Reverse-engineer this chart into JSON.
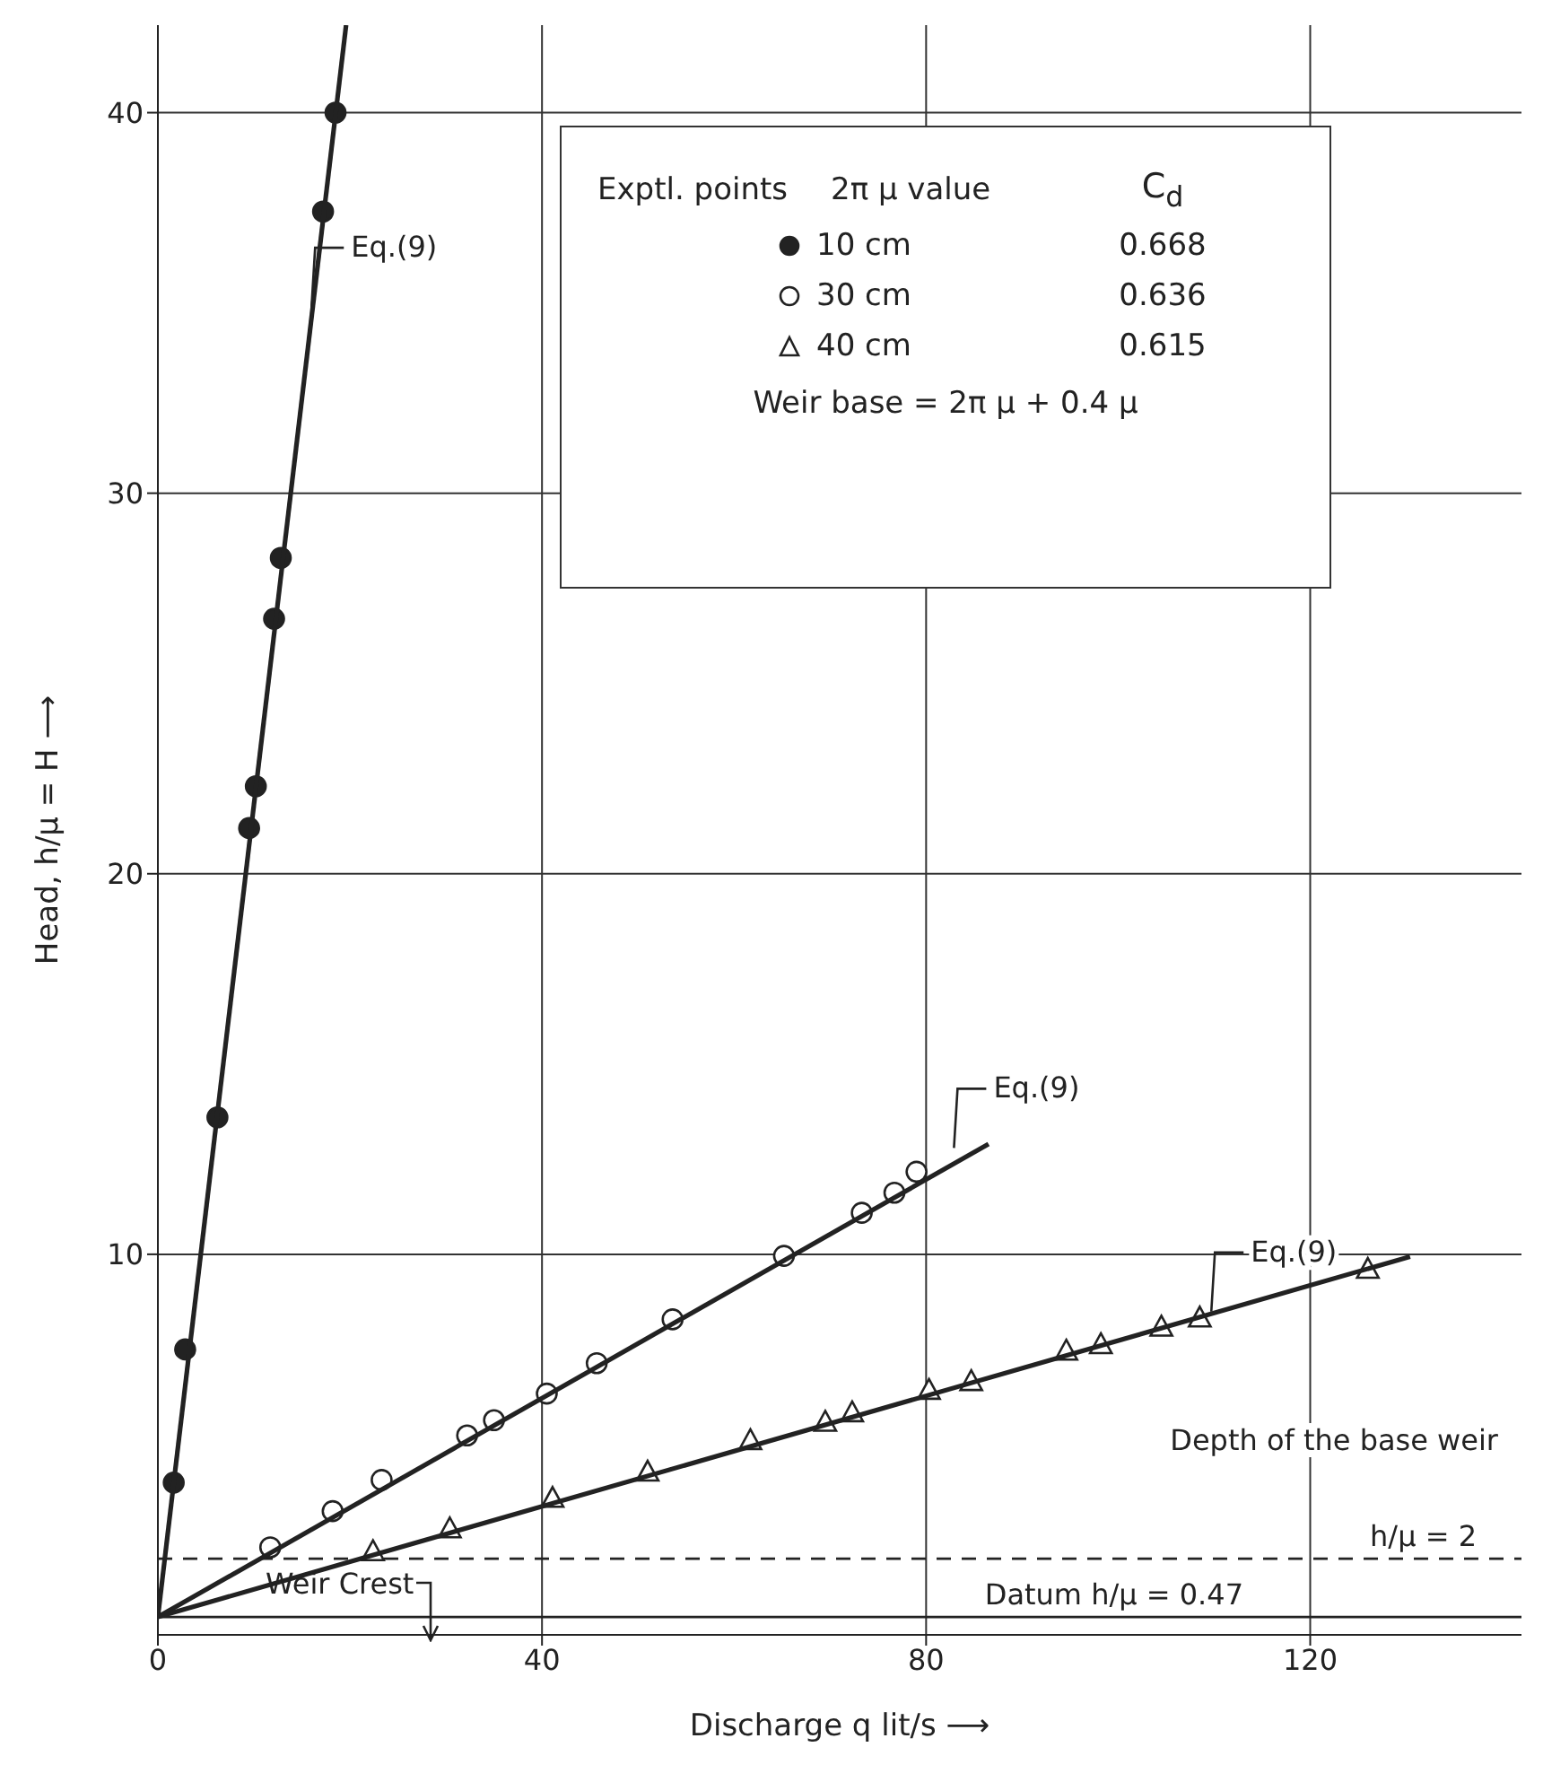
{
  "chart_data": {
    "type": "scatter",
    "xlabel": "Discharge  q  lit/s ⟶",
    "ylabel": "Head, h/μ = H ⟶",
    "xlim": [
      0,
      142
    ],
    "xticks": [
      0,
      40,
      80,
      120
    ],
    "ylim": [
      0,
      42.3
    ],
    "yticks": [
      10,
      20,
      30,
      40
    ],
    "grid": true,
    "legend": "top right",
    "series": [
      {
        "name": "10 cm",
        "marker": "circle",
        "color": "#222222",
        "x": [
          1.65,
          2.84,
          6.2,
          9.5,
          10.2,
          12.1,
          12.8,
          17.2,
          18.5
        ],
        "values": [
          4.0,
          7.5,
          13.6,
          21.2,
          22.3,
          26.7,
          28.3,
          37.4,
          40.0
        ]
      },
      {
        "name": "30 cm",
        "marker": "circle",
        "color": "#ffffff",
        "x": [
          11.7,
          18.2,
          23.3,
          32.2,
          35.0,
          40.5,
          45.7,
          53.6,
          65.2,
          73.3,
          76.7,
          79.0
        ],
        "values": [
          2.3,
          3.25,
          4.07,
          5.24,
          5.64,
          6.34,
          7.14,
          8.29,
          9.96,
          11.09,
          11.62,
          12.17
        ]
      },
      {
        "name": "40 cm",
        "marker": "triangle",
        "color": "#ffffff",
        "x": [
          22.4,
          30.4,
          41.1,
          51.0,
          61.7,
          69.5,
          72.3,
          80.3,
          84.7,
          94.6,
          98.2,
          104.5,
          108.5,
          126.0
        ],
        "values": [
          2.2,
          2.8,
          3.6,
          4.29,
          5.12,
          5.6,
          5.85,
          6.44,
          6.67,
          7.47,
          7.64,
          8.1,
          8.34,
          9.62
        ]
      },
      {
        "type": "line",
        "marker": "none",
        "color": "#222222",
        "x": [
          0,
          19.6
        ],
        "values": [
          0.47,
          42.3
        ]
      },
      {
        "type": "line",
        "marker": "none",
        "color": "#222222",
        "x": [
          0,
          86.5
        ],
        "values": [
          0.47,
          12.9
        ]
      },
      {
        "type": "line",
        "marker": "none",
        "color": "#222222",
        "x": [
          0,
          130.4
        ],
        "values": [
          0.47,
          9.94
        ]
      }
    ],
    "ref_lines": [
      {
        "axis": "y",
        "value": 2,
        "label": "h/μ = 2",
        "line_style": "dashed",
        "color": "#222222"
      },
      {
        "axis": "y",
        "value": 0.47,
        "label": "Datum h/μ = 0.47",
        "line_style": "solid",
        "color": "#222222"
      }
    ],
    "annotations": [
      "Exptl. points",
      "2π μ value",
      "C$_{d}$",
      "0.668",
      "0.636",
      "0.615",
      "Weir base = 2π μ + 0.4 μ",
      "Depth of the base weir",
      {
        "text": "Eq.(9)",
        "x": 16,
        "y": 34.8
      },
      {
        "text": "Eq.(9)",
        "x": 82.9,
        "y": 12.7
      },
      {
        "text": "Eq.(9)",
        "x": 109.7,
        "y": 8.4
      },
      "Weir Crest"
    ]
  }
}
